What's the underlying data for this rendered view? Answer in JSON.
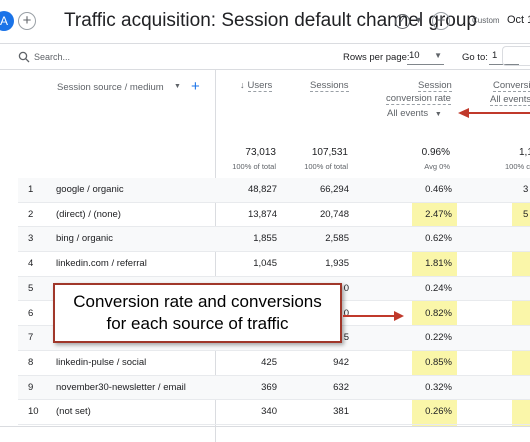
{
  "header": {
    "avatar_letter": "A",
    "title": "Traffic acquisition: Session default channel group",
    "custom_label": "Custom",
    "date_label": "Oct 1"
  },
  "toolbar": {
    "search_placeholder": "Search...",
    "rows_per_page_label": "Rows per page:",
    "rows_per_page_value": "10",
    "goto_label": "Go to:",
    "goto_value": "1"
  },
  "table": {
    "dimension_header": "Session source / medium",
    "columns": {
      "users": "Users",
      "sessions": "Sessions",
      "rate_line1": "Session",
      "rate_line2": "conversion rate",
      "rate_filter": "All events",
      "conv_line1": "Conversi",
      "conv_filter": "All events"
    },
    "totals": {
      "users": "73,013",
      "users_sub": "100% of total",
      "sessions": "107,531",
      "sessions_sub": "100% of total",
      "rate": "0.96%",
      "rate_sub": "Avg 0%",
      "conv": "1,1",
      "conv_sub": "100% c"
    },
    "rows": [
      {
        "idx": "1",
        "source": "google / organic",
        "users": "48,827",
        "sessions": "66,294",
        "rate": "0.46%",
        "conv": "3"
      },
      {
        "idx": "2",
        "source": "(direct) / (none)",
        "users": "13,874",
        "sessions": "20,748",
        "rate": "2.47%",
        "conv": "5"
      },
      {
        "idx": "3",
        "source": "bing / organic",
        "users": "1,855",
        "sessions": "2,585",
        "rate": "0.62%",
        "conv": ""
      },
      {
        "idx": "4",
        "source": "linkedin.com / referral",
        "users": "1,045",
        "sessions": "1,935",
        "rate": "1.81%",
        "conv": ""
      },
      {
        "idx": "5",
        "source": "",
        "users": "",
        "sessions": "0",
        "rate": "0.24%",
        "conv": ""
      },
      {
        "idx": "6",
        "source": "",
        "users": "",
        "sessions": "0",
        "rate": "0.82%",
        "conv": ""
      },
      {
        "idx": "7",
        "source": "",
        "users": "",
        "sessions": "5",
        "rate": "0.22%",
        "conv": ""
      },
      {
        "idx": "8",
        "source": "linkedin-pulse / social",
        "users": "425",
        "sessions": "942",
        "rate": "0.85%",
        "conv": ""
      },
      {
        "idx": "9",
        "source": "november30-newsletter / email",
        "users": "369",
        "sessions": "632",
        "rate": "0.32%",
        "conv": ""
      },
      {
        "idx": "10",
        "source": "(not set)",
        "users": "340",
        "sessions": "381",
        "rate": "0.26%",
        "conv": ""
      }
    ]
  },
  "annotation": {
    "line1": "Conversion rate and conversions",
    "line2": "for each source of traffic",
    "arrow_color": "#c0392b",
    "highlight_color": "#f9f59a"
  },
  "colors": {
    "accent": "#1a73e8"
  }
}
